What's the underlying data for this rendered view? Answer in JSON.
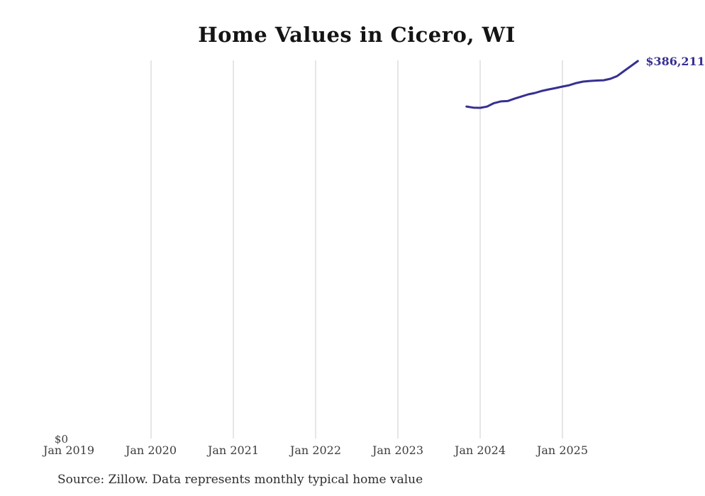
{
  "chart": {
    "title": "Home Values in Cicero, WI",
    "end_label": "$386,211",
    "y_zero_label": "$0",
    "source_note": "Source: Zillow. Data represents monthly typical home value",
    "colors": {
      "line": "#373090",
      "end_label": "#373090",
      "gridline": "#cccccc",
      "axis_label": "#3d3d3d",
      "title": "#141414",
      "background": "#ffffff"
    }
  },
  "chart_data": {
    "type": "line",
    "title": "Home Values in Cicero, WI",
    "xlabel": "",
    "ylabel": "",
    "ylim": [
      0,
      386211
    ],
    "grid": "vertical-only",
    "legend": "none",
    "x_ticks": [
      {
        "label": "Jan 2019",
        "year": 2019,
        "gridline": false
      },
      {
        "label": "Jan 2020",
        "year": 2020,
        "gridline": true
      },
      {
        "label": "Jan 2021",
        "year": 2021,
        "gridline": true
      },
      {
        "label": "Jan 2022",
        "year": 2022,
        "gridline": true
      },
      {
        "label": "Jan 2023",
        "year": 2023,
        "gridline": true
      },
      {
        "label": "Jan 2024",
        "year": 2024,
        "gridline": true
      },
      {
        "label": "Jan 2025",
        "year": 2025,
        "gridline": true
      }
    ],
    "annotation": {
      "text": "$386,211",
      "attached_to": "last-point"
    },
    "series": [
      {
        "name": "Monthly typical home value",
        "points": [
          {
            "date": "2023-11",
            "value": 339600
          },
          {
            "date": "2023-12",
            "value": 338400
          },
          {
            "date": "2024-01",
            "value": 338200
          },
          {
            "date": "2024-02",
            "value": 339500
          },
          {
            "date": "2024-03",
            "value": 343000
          },
          {
            "date": "2024-04",
            "value": 344800
          },
          {
            "date": "2024-05",
            "value": 345200
          },
          {
            "date": "2024-06",
            "value": 347600
          },
          {
            "date": "2024-07",
            "value": 349800
          },
          {
            "date": "2024-08",
            "value": 352000
          },
          {
            "date": "2024-09",
            "value": 353500
          },
          {
            "date": "2024-10",
            "value": 355600
          },
          {
            "date": "2024-11",
            "value": 357100
          },
          {
            "date": "2024-12",
            "value": 358500
          },
          {
            "date": "2025-01",
            "value": 360000
          },
          {
            "date": "2025-02",
            "value": 361400
          },
          {
            "date": "2025-03",
            "value": 363600
          },
          {
            "date": "2025-04",
            "value": 365100
          },
          {
            "date": "2025-05",
            "value": 365800
          },
          {
            "date": "2025-06",
            "value": 366200
          },
          {
            "date": "2025-07",
            "value": 366500
          },
          {
            "date": "2025-08",
            "value": 368000
          },
          {
            "date": "2025-09",
            "value": 370900
          },
          {
            "date": "2025-10",
            "value": 376000
          },
          {
            "date": "2025-11",
            "value": 381100
          },
          {
            "date": "2025-12",
            "value": 386211
          }
        ]
      }
    ]
  }
}
